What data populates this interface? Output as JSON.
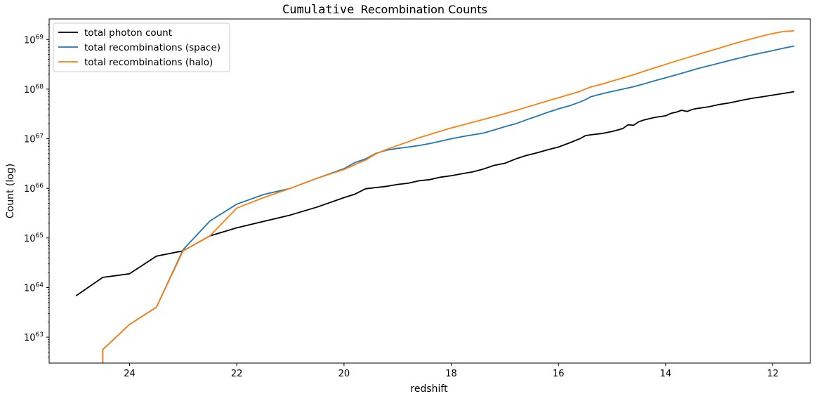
{
  "chart_data": {
    "type": "line",
    "title": {
      "code": "Cumulative",
      "rest": "Recombination Counts"
    },
    "xlabel": "redshift",
    "ylabel": "Count (log)",
    "y_scale": "log",
    "x_inverted": true,
    "xlim": [
      25.5,
      11.3
    ],
    "ylim": [
      3e+62,
      2.6e+69
    ],
    "x_ticks": [
      24,
      22,
      20,
      18,
      16,
      14,
      12
    ],
    "y_ticks": [
      {
        "value": 1e+63,
        "base": "10",
        "exp": "63"
      },
      {
        "value": 1e+64,
        "base": "10",
        "exp": "64"
      },
      {
        "value": 1e+65,
        "base": "10",
        "exp": "65"
      },
      {
        "value": 1e+66,
        "base": "10",
        "exp": "66"
      },
      {
        "value": 1e+67,
        "base": "10",
        "exp": "67"
      },
      {
        "value": 1e+68,
        "base": "10",
        "exp": "68"
      },
      {
        "value": 1e+69,
        "base": "10",
        "exp": "69"
      }
    ],
    "legend_position": "top-left",
    "grid": false,
    "series": [
      {
        "name": "total photon count",
        "color": "#000000",
        "x": [
          25.0,
          24.5,
          24.0,
          23.5,
          23.0,
          22.5,
          22.0,
          21.5,
          21.0,
          20.5,
          20.0,
          19.8,
          19.6,
          19.4,
          19.2,
          19.0,
          18.8,
          18.6,
          18.4,
          18.2,
          18.0,
          17.8,
          17.6,
          17.4,
          17.2,
          17.0,
          16.8,
          16.6,
          16.4,
          16.2,
          16.0,
          15.8,
          15.6,
          15.5,
          15.4,
          15.2,
          15.0,
          14.8,
          14.7,
          14.6,
          14.5,
          14.4,
          14.2,
          14.0,
          13.9,
          13.8,
          13.7,
          13.6,
          13.5,
          13.4,
          13.2,
          13.0,
          12.8,
          12.6,
          12.4,
          12.2,
          12.0,
          11.8,
          11.6
        ],
        "y": [
          6.8e+63,
          1.6e+64,
          1.9e+64,
          4.3e+64,
          5.5e+64,
          1.1e+65,
          1.6e+65,
          2.15e+65,
          2.9e+65,
          4.2e+65,
          6.5e+65,
          7.6e+65,
          9.8e+65,
          1.04e+66,
          1.1e+66,
          1.2e+66,
          1.27e+66,
          1.42e+66,
          1.5e+66,
          1.68e+66,
          1.8e+66,
          1.97e+66,
          2.15e+66,
          2.45e+66,
          2.9e+66,
          3.2e+66,
          3.9e+66,
          4.6e+66,
          5.2e+66,
          6e+66,
          6.8e+66,
          8.2e+66,
          1e+67,
          1.15e+67,
          1.2e+67,
          1.27e+67,
          1.4e+67,
          1.6e+67,
          1.92e+67,
          1.87e+67,
          2.2e+67,
          2.4e+67,
          2.7e+67,
          2.9e+67,
          3.25e+67,
          3.45e+67,
          3.75e+67,
          3.55e+67,
          3.9e+67,
          4.1e+67,
          4.4e+67,
          4.9e+67,
          5.3e+67,
          5.9e+67,
          6.5e+67,
          7e+67,
          7.6e+67,
          8.2e+67,
          8.9e+67
        ]
      },
      {
        "name": "total recombinations (space)",
        "color": "#1f77b4",
        "x": [
          24.5,
          24.5,
          24.0,
          23.5,
          23.0,
          22.5,
          22.0,
          21.5,
          21.0,
          20.5,
          20.0,
          19.8,
          19.6,
          19.4,
          19.2,
          19.0,
          18.8,
          18.6,
          18.4,
          18.2,
          18.0,
          17.8,
          17.6,
          17.4,
          17.2,
          17.0,
          16.8,
          16.6,
          16.4,
          16.2,
          16.0,
          15.8,
          15.6,
          15.5,
          15.4,
          15.2,
          15.0,
          14.8,
          14.6,
          14.4,
          14.2,
          14.0,
          13.8,
          13.6,
          13.4,
          13.2,
          13.0,
          12.8,
          12.6,
          12.4,
          12.2,
          12.0,
          11.8,
          11.6
        ],
        "y": [
          3e+62,
          5.6e+62,
          1.8e+63,
          4e+63,
          5.8e+64,
          2.2e+65,
          4.8e+65,
          7.5e+65,
          1e+66,
          1.6e+66,
          2.5e+66,
          3.3e+66,
          3.9e+66,
          5.1e+66,
          5.9e+66,
          6.4e+66,
          6.8e+66,
          7.3e+66,
          8e+66,
          8.9e+66,
          1e+67,
          1.1e+67,
          1.2e+67,
          1.3e+67,
          1.5e+67,
          1.75e+67,
          2e+67,
          2.4e+67,
          2.85e+67,
          3.4e+67,
          4e+67,
          4.6e+67,
          5.5e+67,
          6.1e+67,
          7e+67,
          8e+67,
          9e+67,
          1e+68,
          1.12e+68,
          1.28e+68,
          1.48e+68,
          1.7e+68,
          1.95e+68,
          2.25e+68,
          2.6e+68,
          2.95e+68,
          3.35e+68,
          3.8e+68,
          4.3e+68,
          4.85e+68,
          5.4e+68,
          6e+68,
          6.7e+68,
          7.4e+68
        ]
      },
      {
        "name": "total recombinations (halo)",
        "color": "#ff7f0e",
        "x": [
          24.5,
          24.5,
          24.0,
          23.5,
          23.0,
          22.5,
          22.0,
          21.5,
          21.0,
          20.5,
          20.0,
          19.8,
          19.6,
          19.4,
          19.2,
          19.0,
          18.8,
          18.6,
          18.4,
          18.2,
          18.0,
          17.8,
          17.6,
          17.4,
          17.2,
          17.0,
          16.8,
          16.6,
          16.4,
          16.2,
          16.0,
          15.8,
          15.6,
          15.5,
          15.4,
          15.2,
          15.0,
          14.8,
          14.6,
          14.4,
          14.2,
          14.0,
          13.8,
          13.6,
          13.4,
          13.2,
          13.0,
          12.8,
          12.6,
          12.4,
          12.2,
          12.0,
          11.8,
          11.7,
          11.6
        ],
        "y": [
          3e+62,
          5.6e+62,
          1.8e+63,
          4e+63,
          5.5e+64,
          1.1e+65,
          4e+65,
          6.5e+65,
          1e+66,
          1.6e+66,
          2.4e+66,
          3e+66,
          3.7e+66,
          5e+66,
          6.1e+66,
          7.3e+66,
          8.7e+66,
          1.05e+67,
          1.22e+67,
          1.42e+67,
          1.65e+67,
          1.88e+67,
          2.15e+67,
          2.45e+67,
          2.8e+67,
          3.2e+67,
          3.7e+67,
          4.3e+67,
          5e+67,
          5.8e+67,
          6.7e+67,
          7.8e+67,
          9e+67,
          1e+68,
          1.1e+68,
          1.25e+68,
          1.45e+68,
          1.68e+68,
          1.95e+68,
          2.3e+68,
          2.7e+68,
          3.15e+68,
          3.7e+68,
          4.3e+68,
          5e+68,
          5.8e+68,
          6.7e+68,
          7.8e+68,
          9e+68,
          1.03e+69,
          1.18e+69,
          1.32e+69,
          1.45e+69,
          1.48e+69,
          1.5e+69
        ]
      }
    ]
  }
}
